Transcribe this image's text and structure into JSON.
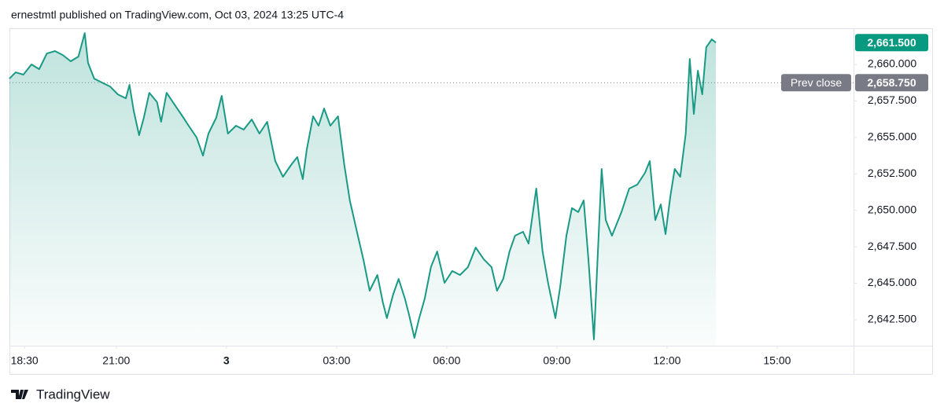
{
  "chart_data": {
    "type": "area",
    "header": "ernestmtl published on TradingView.com, Oct 03, 2024 13:25 UTC-4",
    "brand": "TradingView",
    "color": "#1a9a85",
    "x": [
      18.09,
      18.26,
      18.47,
      18.69,
      18.9,
      19.11,
      19.33,
      19.54,
      19.76,
      19.97,
      20.14,
      20.23,
      20.4,
      20.61,
      20.83,
      21.04,
      21.26,
      21.36,
      21.47,
      21.62,
      21.75,
      21.9,
      22.11,
      22.22,
      22.37,
      22.54,
      22.76,
      22.97,
      23.19,
      23.36,
      23.51,
      23.72,
      23.87,
      24.04,
      24.26,
      24.47,
      24.69,
      24.9,
      25.11,
      25.33,
      25.54,
      25.76,
      25.93,
      26.08,
      26.19,
      26.36,
      26.51,
      26.66,
      26.83,
      27.04,
      27.21,
      27.36,
      27.58,
      27.73,
      27.9,
      28.11,
      28.26,
      28.37,
      28.54,
      28.69,
      28.86,
      28.97,
      29.12,
      29.25,
      29.4,
      29.57,
      29.74,
      29.94,
      30.15,
      30.36,
      30.58,
      30.79,
      31.01,
      31.22,
      31.37,
      31.54,
      31.71,
      31.86,
      32.08,
      32.23,
      32.44,
      32.61,
      32.76,
      32.96,
      33.09,
      33.26,
      33.41,
      33.58,
      33.73,
      33.86,
      34.01,
      34.07,
      34.22,
      34.33,
      34.5,
      34.76,
      34.97,
      35.19,
      35.4,
      35.53,
      35.68,
      35.83,
      35.96,
      36.09,
      36.21,
      36.36,
      36.51,
      36.62,
      36.73,
      36.84,
      36.96,
      37.07,
      37.22,
      37.33
    ],
    "values": [
      2659.03,
      2659.46,
      2659.3,
      2660.0,
      2659.68,
      2660.75,
      2660.92,
      2660.65,
      2660.22,
      2660.54,
      2662.15,
      2660.11,
      2659.03,
      2658.76,
      2658.49,
      2657.95,
      2657.68,
      2658.6,
      2656.88,
      2655.15,
      2656.34,
      2658.06,
      2657.42,
      2656.07,
      2658.06,
      2657.42,
      2656.61,
      2655.8,
      2654.99,
      2653.75,
      2655.26,
      2656.34,
      2657.85,
      2655.26,
      2655.8,
      2655.53,
      2656.23,
      2655.26,
      2656.07,
      2653.38,
      2652.3,
      2653.11,
      2653.65,
      2652.14,
      2654.18,
      2656.45,
      2655.8,
      2656.98,
      2655.8,
      2656.45,
      2653.11,
      2650.68,
      2648.26,
      2646.64,
      2644.49,
      2645.57,
      2643.68,
      2642.61,
      2644.22,
      2645.3,
      2643.95,
      2642.88,
      2641.26,
      2642.61,
      2643.95,
      2646.11,
      2647.18,
      2645.03,
      2645.84,
      2645.57,
      2646.11,
      2647.45,
      2646.64,
      2646.11,
      2644.49,
      2645.3,
      2647.18,
      2648.26,
      2648.53,
      2647.72,
      2651.49,
      2647.18,
      2645.03,
      2642.61,
      2644.76,
      2648.26,
      2650.15,
      2649.88,
      2650.68,
      2646.64,
      2641.15,
      2644.49,
      2652.84,
      2649.34,
      2648.26,
      2649.88,
      2651.49,
      2651.76,
      2652.57,
      2653.38,
      2649.34,
      2650.41,
      2648.37,
      2650.95,
      2652.84,
      2652.3,
      2655.26,
      2660.38,
      2656.61,
      2659.57,
      2657.95,
      2661.18,
      2661.72,
      2661.5
    ],
    "xlim": [
      18.09,
      41.08
    ],
    "xticks": [
      {
        "value": 18.5,
        "label": "18:30"
      },
      {
        "value": 21,
        "label": "21:00"
      },
      {
        "value": 24,
        "label": "3"
      },
      {
        "value": 27,
        "label": "03:00"
      },
      {
        "value": 30,
        "label": "06:00"
      },
      {
        "value": 33,
        "label": "09:00"
      },
      {
        "value": 36,
        "label": "12:00"
      },
      {
        "value": 39,
        "label": "15:00"
      }
    ],
    "ylim": [
      2640.72,
      2662.48
    ],
    "yticks": [
      {
        "value": 2642.5,
        "label": "2,642.500"
      },
      {
        "value": 2645,
        "label": "2,645.000"
      },
      {
        "value": 2647.5,
        "label": "2,647.500"
      },
      {
        "value": 2650,
        "label": "2,650.000"
      },
      {
        "value": 2652.5,
        "label": "2,652.500"
      },
      {
        "value": 2655,
        "label": "2,655.000"
      },
      {
        "value": 2657.5,
        "label": "2,657.500"
      },
      {
        "value": 2660,
        "label": "2,660.000"
      }
    ],
    "last_price": {
      "value": 2661.5,
      "label": "2,661.500",
      "color": "#089981"
    },
    "prev_close": {
      "name": "Prev close",
      "value": 2658.75,
      "label": "2,658.750",
      "color": "#787b86"
    }
  }
}
